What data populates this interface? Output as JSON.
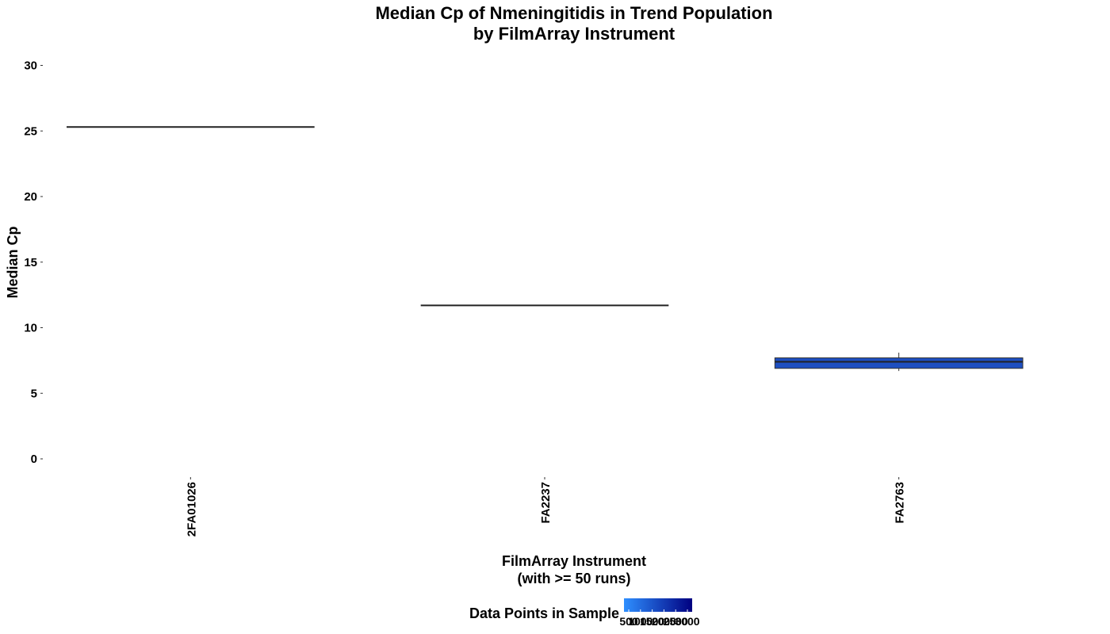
{
  "chart_data": {
    "type": "box",
    "title_lines": [
      "Median Cp of Nmeningitidis in Trend Population",
      "by FilmArray Instrument"
    ],
    "xlabel_lines": [
      "FilmArray Instrument",
      "(with >= 50 runs)"
    ],
    "ylabel": "Median Cp",
    "ylim": [
      -1,
      30.6
    ],
    "y_ticks": [
      0,
      5,
      10,
      15,
      20,
      25,
      30
    ],
    "y_tick_labels": [
      "0",
      "5",
      "10",
      "15",
      "20",
      "25",
      "30"
    ],
    "grid": false,
    "categories": [
      "2FA01026",
      "FA2237",
      "FA2763"
    ],
    "boxes": [
      {
        "category": "2FA01026",
        "lower_whisker": 25.3,
        "q1": 25.3,
        "median": 25.3,
        "q3": 25.3,
        "upper_whisker": 25.3,
        "fill": null
      },
      {
        "category": "FA2237",
        "lower_whisker": 11.7,
        "q1": 11.7,
        "median": 11.7,
        "q3": 11.7,
        "upper_whisker": 11.7,
        "fill": null
      },
      {
        "category": "FA2763",
        "lower_whisker": 6.7,
        "q1": 6.9,
        "median": 7.4,
        "q3": 7.7,
        "upper_whisker": 8.1,
        "fill": "#1e4fc0"
      }
    ],
    "legend": {
      "title": "Data Points in Sample",
      "position": "bottom",
      "tick_labels": [
        "500",
        "1000",
        "1500",
        "2000",
        "2500",
        "3000"
      ],
      "gradient_low": "#2e8fff",
      "gradient_high": "#000080"
    }
  }
}
